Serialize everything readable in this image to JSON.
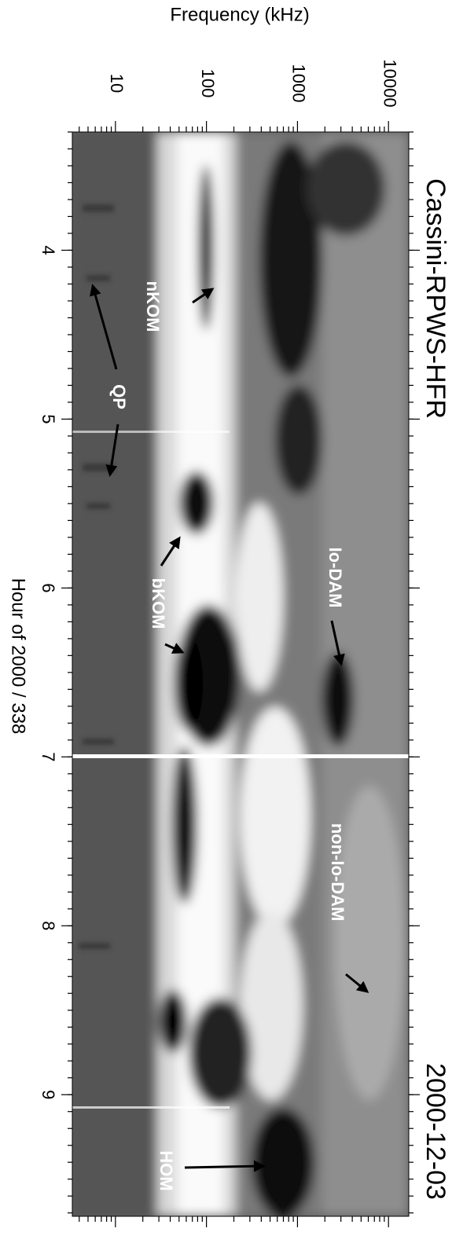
{
  "chart_data": {
    "type": "spectrogram",
    "title": "Cassini-RPWS-HFR",
    "subtitle": "2000-12-03",
    "xlabel": "Hour of 2000 / 338",
    "ylabel": "Frequency (kHz)",
    "xlim": [
      3.3,
      9.72
    ],
    "xticks": [
      4,
      5,
      6,
      7,
      8,
      9
    ],
    "ylim": [
      3.36,
      16700
    ],
    "yticks": [
      10,
      100,
      1000,
      10000
    ],
    "yscale": "log",
    "annotations": [
      "nKOM",
      "QP",
      "bKOM",
      "Io-DAM",
      "non-Io-DAM",
      "HOM"
    ]
  }
}
